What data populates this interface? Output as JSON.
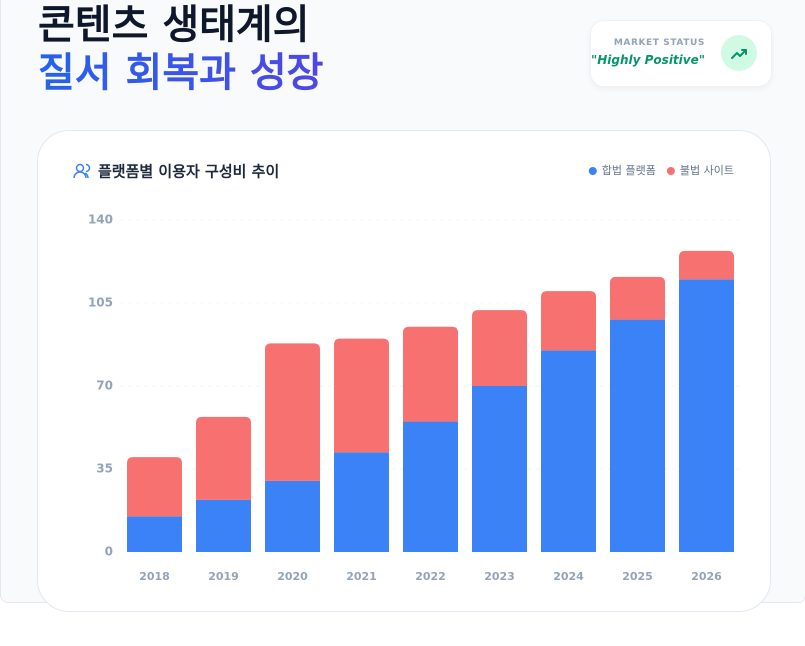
{
  "header": {
    "title_line1": "콘텐츠 생태계의",
    "title_line2": "질서 회복과 성장"
  },
  "status": {
    "label": "MARKET STATUS",
    "value": "\"Highly Positive\""
  },
  "chart_data": {
    "type": "bar",
    "stacked": true,
    "title": "플랫폼별 이용자 구성비 추이",
    "categories": [
      "2018",
      "2019",
      "2020",
      "2021",
      "2022",
      "2023",
      "2024",
      "2025",
      "2026"
    ],
    "series": [
      {
        "name": "합법 플랫폼",
        "color": "#3b82f6",
        "values": [
          15,
          22,
          30,
          42,
          55,
          70,
          85,
          98,
          115
        ]
      },
      {
        "name": "불법 사이트",
        "color": "#f87171",
        "values": [
          25,
          35,
          58,
          48,
          40,
          32,
          25,
          18,
          12
        ]
      }
    ],
    "ylim": [
      0,
      140
    ],
    "yticks": [
      0,
      35,
      70,
      105,
      140
    ],
    "grid": true,
    "legend": "top-right"
  }
}
